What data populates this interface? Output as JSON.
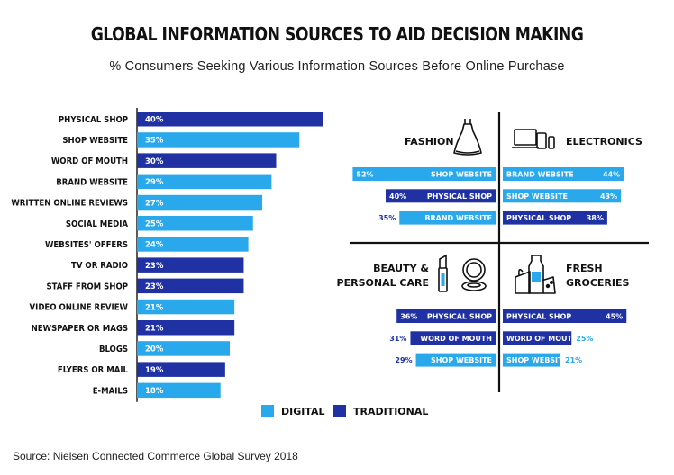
{
  "title": "GLOBAL INFORMATION SOURCES TO AID DECISION MAKING",
  "subtitle": "% Consumers Seeking Various Information Sources Before Online Purchase",
  "source": "Source: Nielsen Connected Commerce Global Survey 2018",
  "colors": {
    "digital": "#29a8ec",
    "traditional": "#1f31a3"
  },
  "legend": [
    {
      "name": "DIGITAL",
      "color": "#29a8ec"
    },
    {
      "name": "TRADITIONAL",
      "color": "#1f31a3"
    }
  ],
  "chart_data": [
    {
      "type": "bar",
      "orientation": "horizontal",
      "categories": [
        "PHYSICAL SHOP",
        "SHOP WEBSITE",
        "WORD OF MOUTH",
        "BRAND WEBSITE",
        "WRITTEN ONLINE REVIEWS",
        "SOCIAL MEDIA",
        "WEBSITES' OFFERS",
        "TV OR RADIO",
        "STAFF FROM SHOP",
        "VIDEO ONLINE REVIEW",
        "NEWSPAPER OR MAGS",
        "BLOGS",
        "FLYERS OR MAIL",
        "E-MAILS"
      ],
      "values": [
        40,
        35,
        30,
        29,
        27,
        25,
        24,
        23,
        23,
        21,
        21,
        20,
        19,
        18
      ],
      "value_labels": [
        "40%",
        "35%",
        "30%",
        "29%",
        "27%",
        "25%",
        "24%",
        "23%",
        "23%",
        "21%",
        "21%",
        "20%",
        "19%",
        "18%"
      ],
      "kinds": [
        "traditional",
        "digital",
        "traditional",
        "digital",
        "digital",
        "digital",
        "digital",
        "traditional",
        "traditional",
        "digital",
        "traditional",
        "digital",
        "traditional",
        "digital"
      ],
      "xlim": [
        0,
        40
      ]
    },
    {
      "type": "bar",
      "panels": [
        {
          "title": "FASHION",
          "icon": "dress-icon",
          "side": "left",
          "rows": [
            {
              "label": "SHOP WEBSITE",
              "value": 52,
              "value_label": "52%",
              "kind": "digital"
            },
            {
              "label": "PHYSICAL SHOP",
              "value": 40,
              "value_label": "40%",
              "kind": "traditional"
            },
            {
              "label": "BRAND WEBSITE",
              "value": 35,
              "value_label": "35%",
              "kind": "digital"
            }
          ]
        },
        {
          "title": "ELECTRONICS",
          "icon": "devices-icon",
          "side": "right",
          "rows": [
            {
              "label": "BRAND WEBSITE",
              "value": 44,
              "value_label": "44%",
              "kind": "digital"
            },
            {
              "label": "SHOP WEBSITE",
              "value": 43,
              "value_label": "43%",
              "kind": "digital"
            },
            {
              "label": "PHYSICAL SHOP",
              "value": 38,
              "value_label": "38%",
              "kind": "traditional"
            }
          ]
        },
        {
          "title_lines": [
            "BEAUTY &",
            "PERSONAL CARE"
          ],
          "icon": "cosmetics-icon",
          "side": "left",
          "rows": [
            {
              "label": "PHYSICAL SHOP",
              "value": 36,
              "value_label": "36%",
              "kind": "traditional"
            },
            {
              "label": "WORD OF MOUTH",
              "value": 31,
              "value_label": "31%",
              "kind": "traditional"
            },
            {
              "label": "SHOP WEBSITE",
              "value": 29,
              "value_label": "29%",
              "kind": "digital"
            }
          ]
        },
        {
          "title_lines": [
            "FRESH",
            "GROCERIES"
          ],
          "icon": "groceries-icon",
          "side": "right",
          "rows": [
            {
              "label": "PHYSICAL SHOP",
              "value": 45,
              "value_label": "45%",
              "kind": "traditional"
            },
            {
              "label": "WORD OF MOUTH",
              "value": 25,
              "value_label": "25%",
              "kind": "traditional"
            },
            {
              "label": "SHOP WEBSITE",
              "value": 21,
              "value_label": "21%",
              "kind": "digital"
            }
          ]
        }
      ]
    }
  ]
}
